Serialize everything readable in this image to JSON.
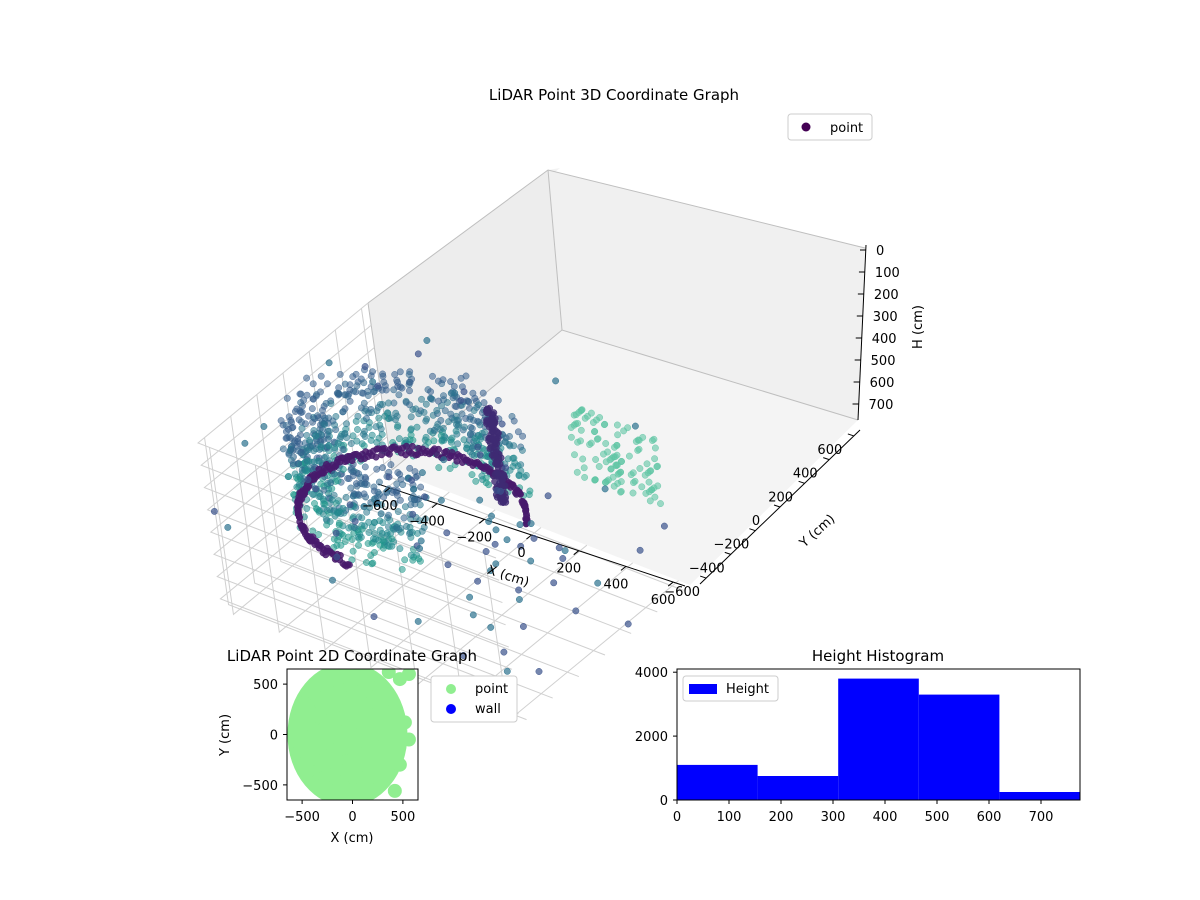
{
  "chart_data": [
    {
      "type": "scatter",
      "title": "LiDAR Point 3D Coordinate Graph",
      "xlabel": "X (cm)",
      "ylabel": "Y (cm)",
      "zlabel": "H (cm)",
      "x_ticks": [
        -600,
        -400,
        -200,
        0,
        200,
        400,
        600
      ],
      "y_ticks": [
        -600,
        -400,
        -200,
        0,
        200,
        400,
        600
      ],
      "z_ticks": [
        0,
        100,
        200,
        300,
        400,
        500,
        600,
        700
      ],
      "xlim": [
        -650,
        650
      ],
      "ylim": [
        -650,
        650
      ],
      "zlim": [
        0,
        750
      ],
      "z_inverted": true,
      "grid": true,
      "legend": {
        "position": "top-right",
        "entries": [
          "point"
        ]
      },
      "series": [
        {
          "name": "point",
          "marker_color": "#440154",
          "colormap": "viridis"
        }
      ]
    },
    {
      "type": "scatter",
      "title": "LiDAR Point 2D Coordinate Graph",
      "xlabel": "X (cm)",
      "ylabel": "Y (cm)",
      "x_ticks": [
        -500,
        0,
        500
      ],
      "y_ticks": [
        -500,
        0,
        500
      ],
      "xlim": [
        -650,
        650
      ],
      "ylim": [
        -650,
        650
      ],
      "legend": {
        "position": "outside-right",
        "entries": [
          "point",
          "wall"
        ]
      },
      "series": [
        {
          "name": "point",
          "color": "#90ee90"
        },
        {
          "name": "wall",
          "color": "#0000ff"
        }
      ]
    },
    {
      "type": "bar",
      "title": "Height Histogram",
      "x_ticks": [
        0,
        100,
        200,
        300,
        400,
        500,
        600,
        700
      ],
      "y_ticks": [
        0,
        2000,
        4000
      ],
      "xlim": [
        0,
        775
      ],
      "ylim": [
        0,
        4100
      ],
      "bin_edges": [
        0,
        155,
        310,
        465,
        620,
        775
      ],
      "values": [
        1100,
        750,
        3800,
        3300,
        250
      ],
      "legend": {
        "position": "top-left",
        "entries": [
          "Height"
        ]
      },
      "series": [
        {
          "name": "Height",
          "color": "#0000ff"
        }
      ]
    }
  ]
}
